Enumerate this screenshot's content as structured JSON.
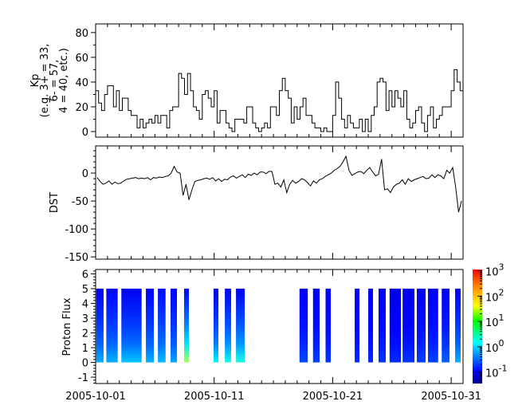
{
  "chart_data": [
    {
      "type": "line",
      "ylabel_lines": [
        "Kp",
        "(e.g. 3+ = 33,",
        "6- = 57,",
        "4 = 40, etc.)"
      ],
      "ylim": [
        -4.5,
        87
      ],
      "yticks": [
        "0",
        "20",
        "40",
        "60",
        "80"
      ],
      "xlim": [
        "2005-10-01",
        "2005-11-01"
      ],
      "x_step_hours": 6,
      "step": true,
      "values": [
        33,
        23,
        17,
        30,
        37,
        37,
        20,
        33,
        17,
        27,
        27,
        17,
        13,
        13,
        3,
        10,
        3,
        7,
        10,
        7,
        13,
        7,
        13,
        13,
        3,
        17,
        20,
        20,
        47,
        43,
        30,
        47,
        33,
        20,
        17,
        10,
        30,
        33,
        27,
        20,
        33,
        7,
        17,
        17,
        7,
        3,
        0,
        10,
        10,
        10,
        7,
        20,
        20,
        7,
        3,
        0,
        3,
        7,
        3,
        20,
        20,
        13,
        33,
        43,
        33,
        27,
        7,
        20,
        10,
        20,
        27,
        13,
        13,
        7,
        3,
        3,
        0,
        3,
        0,
        0,
        13,
        40,
        27,
        10,
        3,
        13,
        7,
        3,
        3,
        10,
        0,
        10,
        0,
        13,
        20,
        40,
        43,
        40,
        17,
        33,
        20,
        33,
        27,
        20,
        33,
        10,
        3,
        7,
        17,
        20,
        7,
        0,
        13,
        20,
        3,
        10,
        13,
        20,
        20,
        20,
        33,
        50,
        40,
        33
      ]
    },
    {
      "type": "line",
      "ylabel": "DST",
      "ylim": [
        -154,
        48.6
      ],
      "yticks": [
        "0",
        "-50",
        "-100",
        "-150"
      ],
      "xlim": [
        "2005-10-01",
        "2005-11-01"
      ],
      "x_step_hours": 6,
      "values": [
        -8,
        -15,
        -20,
        -18,
        -14,
        -20,
        -16,
        -19,
        -18,
        -14,
        -11,
        -10,
        -9,
        -8,
        -10,
        -9,
        -10,
        -8,
        -12,
        -8,
        -9,
        -7,
        -8,
        -6,
        -5,
        0,
        12,
        2,
        0,
        -40,
        -20,
        -48,
        -30,
        -15,
        -13,
        -12,
        -10,
        -9,
        -11,
        -8,
        -14,
        -10,
        -15,
        -11,
        -12,
        -7,
        -5,
        -9,
        -6,
        -3,
        -8,
        -2,
        -4,
        0,
        -3,
        2,
        2,
        -1,
        3,
        3,
        -20,
        -18,
        -25,
        -12,
        -35,
        -20,
        -13,
        -18,
        -15,
        -10,
        -12,
        -17,
        -23,
        -14,
        -18,
        -12,
        -10,
        -6,
        -3,
        0,
        5,
        8,
        12,
        20,
        30,
        5,
        -4,
        -1,
        2,
        3,
        -1,
        5,
        10,
        2,
        -5,
        -2,
        25,
        -30,
        -28,
        -35,
        -25,
        -20,
        -18,
        -12,
        -20,
        -10,
        -15,
        -12,
        -10,
        -8,
        -6,
        -10,
        -9,
        -3,
        -8,
        -3,
        -5,
        -10,
        5,
        0,
        10,
        -25,
        -70,
        -50
      ]
    },
    {
      "type": "heatmap",
      "ylabel": "Proton Flux",
      "ylim": [
        -1.43,
        6.3
      ],
      "yticks": [
        "-1",
        "0",
        "1",
        "2",
        "3",
        "4",
        "5",
        "6"
      ],
      "xlim": [
        "2005-10-01",
        "2005-11-01"
      ],
      "xticks": [
        "2005-10-01",
        "2005-10-11",
        "2005-10-21",
        "2005-10-31"
      ],
      "y_range_of_data": [
        0,
        5
      ],
      "colorscale": "jet",
      "color_log10_range": [
        -1.45,
        3.05
      ],
      "colorbar_ticks": [
        {
          "base": "10",
          "exp": "3"
        },
        {
          "base": "10",
          "exp": "2"
        },
        {
          "base": "10",
          "exp": "1"
        },
        {
          "base": "10",
          "exp": "0"
        },
        {
          "base": "10",
          "exp": "-1"
        }
      ],
      "bars_note_units": "days since 2005-10-01 start/end; log10 flux at bottom/top",
      "bars": [
        {
          "start": 0.05,
          "end": 0.67,
          "log_bottom": -0.1,
          "log_top": -0.9
        },
        {
          "start": 0.9,
          "end": 1.86,
          "log_bottom": -0.1,
          "log_top": -0.9
        },
        {
          "start": 2.17,
          "end": 3.88,
          "log_bottom": 0.0,
          "log_top": -0.95
        },
        {
          "start": 4.24,
          "end": 4.91,
          "log_bottom": -0.1,
          "log_top": -0.9
        },
        {
          "start": 5.25,
          "end": 5.9,
          "log_bottom": -0.05,
          "log_top": -0.85
        },
        {
          "start": 6.32,
          "end": 6.86,
          "log_bottom": -0.15,
          "log_top": -0.9
        },
        {
          "start": 7.46,
          "end": 7.87,
          "log_bottom": 1.0,
          "log_top": -0.95
        },
        {
          "start": 9.95,
          "end": 10.36,
          "log_bottom": 0.2,
          "log_top": -1.0
        },
        {
          "start": 10.9,
          "end": 11.43,
          "log_bottom": 0.3,
          "log_top": -0.95
        },
        {
          "start": 11.84,
          "end": 12.58,
          "log_bottom": 0.35,
          "log_top": -0.95
        },
        {
          "start": 17.2,
          "end": 17.9,
          "log_bottom": -0.55,
          "log_top": -0.95
        },
        {
          "start": 18.34,
          "end": 18.9,
          "log_bottom": -0.6,
          "log_top": -0.95
        },
        {
          "start": 19.4,
          "end": 19.84,
          "log_bottom": -0.65,
          "log_top": -0.95
        },
        {
          "start": 21.86,
          "end": 22.26,
          "log_bottom": -0.7,
          "log_top": -0.95
        },
        {
          "start": 23.0,
          "end": 23.4,
          "log_bottom": -0.7,
          "log_top": -0.95
        },
        {
          "start": 23.87,
          "end": 24.48,
          "log_bottom": -0.65,
          "log_top": -0.95
        },
        {
          "start": 24.8,
          "end": 25.76,
          "log_bottom": -0.7,
          "log_top": -1.0
        },
        {
          "start": 25.9,
          "end": 26.9,
          "log_bottom": -0.65,
          "log_top": -1.0
        },
        {
          "start": 27.1,
          "end": 27.84,
          "log_bottom": -0.6,
          "log_top": -0.95
        },
        {
          "start": 28.04,
          "end": 28.9,
          "log_bottom": -0.6,
          "log_top": -0.95
        },
        {
          "start": 29.2,
          "end": 29.86,
          "log_bottom": -0.45,
          "log_top": -0.95
        },
        {
          "start": 30.33,
          "end": 30.8,
          "log_bottom": -0.1,
          "log_top": -0.9
        }
      ]
    }
  ]
}
